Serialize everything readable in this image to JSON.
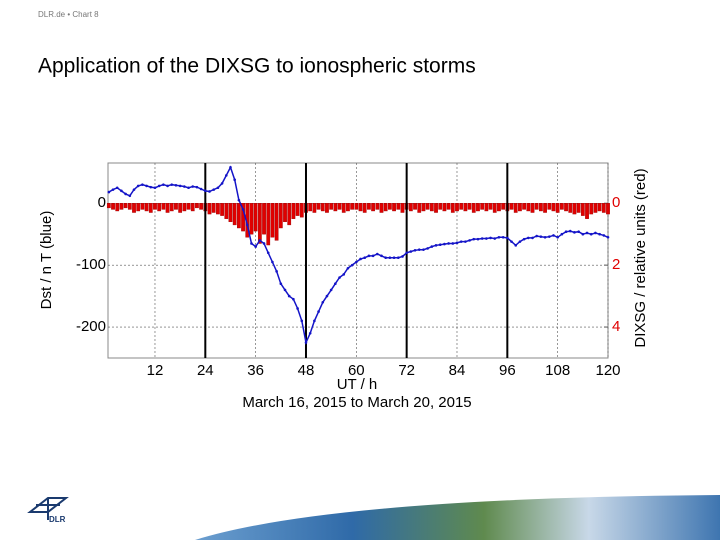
{
  "header": {
    "source": "DLR.de • Chart 8",
    "title": "Application of the DIXSG to ionospheric storms"
  },
  "logo": "DLR",
  "chart_data": {
    "type": "bar-line",
    "xlabel": "UT / h",
    "subtitle": "March 16, 2015 to March 20, 2015",
    "ylabel": "Dst / n T (blue)",
    "y2label": "DIXSG / relative units (red)",
    "xlim": [
      0.8,
      120
    ],
    "xticks": [
      12,
      24,
      36,
      48,
      60,
      72,
      84,
      96,
      108,
      120
    ],
    "ylim": [
      -250,
      65
    ],
    "yticks": [
      0,
      -100,
      -200
    ],
    "y2lim": [
      5,
      -1.3
    ],
    "y2ticks": [
      0,
      2,
      4
    ],
    "grid": true,
    "day_boundaries": [
      24,
      48,
      72,
      96
    ],
    "x": [
      1,
      2,
      3,
      4,
      5,
      6,
      7,
      8,
      9,
      10,
      11,
      12,
      13,
      14,
      15,
      16,
      17,
      18,
      19,
      20,
      21,
      22,
      23,
      24,
      25,
      26,
      27,
      28,
      29,
      30,
      31,
      32,
      33,
      34,
      35,
      36,
      37,
      38,
      39,
      40,
      41,
      42,
      43,
      44,
      45,
      46,
      47,
      48,
      49,
      50,
      51,
      52,
      53,
      54,
      55,
      56,
      57,
      58,
      59,
      60,
      61,
      62,
      63,
      64,
      65,
      66,
      67,
      68,
      69,
      70,
      71,
      72,
      73,
      74,
      75,
      76,
      77,
      78,
      79,
      80,
      81,
      82,
      83,
      84,
      85,
      86,
      87,
      88,
      89,
      90,
      91,
      92,
      93,
      94,
      95,
      96,
      97,
      98,
      99,
      100,
      101,
      102,
      103,
      104,
      105,
      106,
      107,
      108,
      109,
      110,
      111,
      112,
      113,
      114,
      115,
      116,
      117,
      118,
      119,
      120
    ],
    "series": [
      {
        "name": "DIXSG",
        "type": "bar",
        "axis": "y2",
        "color": "#e00000",
        "values": [
          0.15,
          0.2,
          0.25,
          0.2,
          0.15,
          0.2,
          0.3,
          0.25,
          0.2,
          0.25,
          0.3,
          0.2,
          0.25,
          0.2,
          0.3,
          0.25,
          0.2,
          0.3,
          0.25,
          0.2,
          0.25,
          0.15,
          0.2,
          0.25,
          0.35,
          0.3,
          0.35,
          0.4,
          0.5,
          0.6,
          0.7,
          0.8,
          0.9,
          1.1,
          1.0,
          0.9,
          1.3,
          1.0,
          1.35,
          1.1,
          1.2,
          0.8,
          0.6,
          0.7,
          0.5,
          0.4,
          0.45,
          0.3,
          0.25,
          0.3,
          0.2,
          0.25,
          0.3,
          0.2,
          0.25,
          0.2,
          0.3,
          0.25,
          0.2,
          0.2,
          0.25,
          0.3,
          0.2,
          0.25,
          0.2,
          0.3,
          0.25,
          0.2,
          0.25,
          0.2,
          0.3,
          0.2,
          0.25,
          0.2,
          0.3,
          0.25,
          0.2,
          0.25,
          0.3,
          0.2,
          0.25,
          0.2,
          0.3,
          0.25,
          0.2,
          0.25,
          0.2,
          0.3,
          0.25,
          0.2,
          0.25,
          0.2,
          0.3,
          0.25,
          0.2,
          0.25,
          0.2,
          0.3,
          0.25,
          0.2,
          0.25,
          0.3,
          0.2,
          0.25,
          0.3,
          0.2,
          0.25,
          0.3,
          0.2,
          0.25,
          0.3,
          0.35,
          0.3,
          0.4,
          0.5,
          0.35,
          0.3,
          0.25,
          0.3,
          0.35
        ]
      },
      {
        "name": "Dst",
        "type": "line",
        "color": "#1414c8",
        "values": [
          18,
          22,
          25,
          20,
          15,
          12,
          22,
          28,
          30,
          28,
          26,
          25,
          28,
          30,
          28,
          30,
          29,
          28,
          27,
          25,
          27,
          26,
          23,
          20,
          19,
          22,
          25,
          32,
          45,
          58,
          38,
          5,
          -10,
          -35,
          -65,
          -70,
          -60,
          -65,
          -80,
          -95,
          -110,
          -130,
          -140,
          -150,
          -155,
          -170,
          -190,
          -225,
          -210,
          -190,
          -175,
          -160,
          -150,
          -140,
          -130,
          -120,
          -115,
          -105,
          -100,
          -95,
          -90,
          -88,
          -85,
          -85,
          -82,
          -85,
          -88,
          -88,
          -88,
          -88,
          -86,
          -80,
          -78,
          -76,
          -75,
          -75,
          -73,
          -70,
          -68,
          -67,
          -66,
          -65,
          -65,
          -64,
          -62,
          -62,
          -60,
          -58,
          -58,
          -57,
          -57,
          -56,
          -57,
          -55,
          -55,
          -56,
          -62,
          -68,
          -62,
          -58,
          -56,
          -56,
          -53,
          -54,
          -55,
          -54,
          -52,
          -55,
          -50,
          -46,
          -45,
          -47,
          -46,
          -50,
          -48,
          -50,
          -48,
          -50,
          -52,
          -55
        ]
      }
    ]
  }
}
